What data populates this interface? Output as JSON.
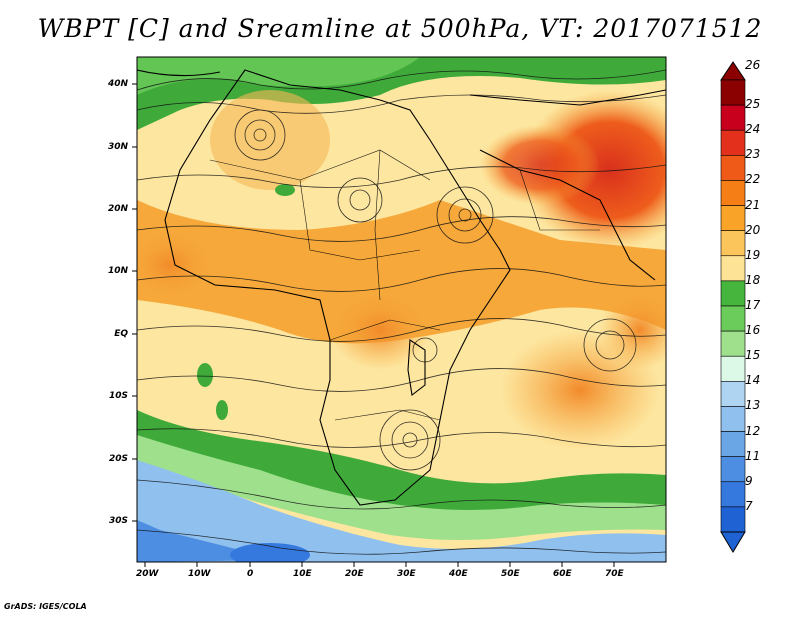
{
  "title": "WBPT [C] and Sreamline at 500hPa, VT: 2017071512",
  "credit": "GrADS: IGES/COLA",
  "map": {
    "lat_labels": [
      "40N",
      "30N",
      "20N",
      "10N",
      "EQ",
      "10S",
      "20S",
      "30S"
    ],
    "lon_labels": [
      "20W",
      "10W",
      "0",
      "10E",
      "20E",
      "30E",
      "40E",
      "50E",
      "60E",
      "70E"
    ]
  },
  "colorbar": {
    "labels": [
      "26",
      "25",
      "24",
      "23",
      "22",
      "21",
      "20",
      "19",
      "18",
      "17",
      "16",
      "15",
      "14",
      "13",
      "12",
      "11",
      "9",
      "7"
    ],
    "colors": [
      "#8b0000",
      "#c8001e",
      "#e2301c",
      "#ef5a19",
      "#f57e16",
      "#f9a329",
      "#fbc55c",
      "#fde396",
      "#46b53d",
      "#6ccc5b",
      "#9fe08d",
      "#dcf9e8",
      "#aed4f1",
      "#8fc0ee",
      "#6aa6e6",
      "#4d8ee2",
      "#3579de",
      "#1f62d4"
    ]
  },
  "colors": {
    "high": "#e74b1b",
    "warm": "#f6a83a",
    "mild": "#fde6a0",
    "green": "#3faa3a",
    "cold": "#7bb0e8"
  }
}
